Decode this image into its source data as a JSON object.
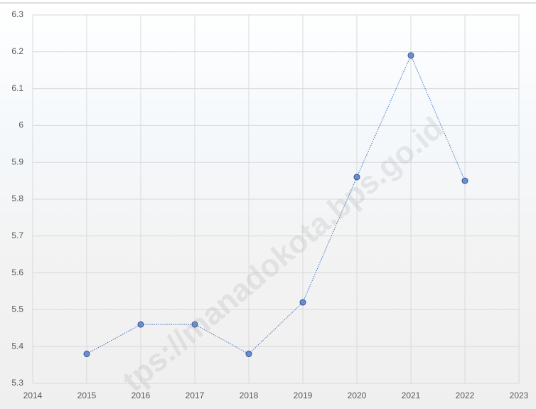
{
  "chart_data": {
    "type": "line",
    "x": [
      2015,
      2016,
      2017,
      2018,
      2019,
      2020,
      2021,
      2022
    ],
    "values": [
      5.38,
      5.46,
      5.46,
      5.38,
      5.52,
      5.86,
      6.19,
      5.85
    ],
    "color": "#4472c4",
    "xlim": [
      2014,
      2023
    ],
    "xticks": [
      2014,
      2015,
      2016,
      2017,
      2018,
      2019,
      2020,
      2021,
      2022,
      2023
    ],
    "ylim": [
      5.3,
      6.3
    ],
    "yticks": [
      5.3,
      5.4,
      5.5,
      5.6,
      5.7,
      5.8,
      5.9,
      6,
      6.1,
      6.2,
      6.3
    ],
    "grid": true,
    "annotation": "tps://manadokota.bps.go.id"
  }
}
